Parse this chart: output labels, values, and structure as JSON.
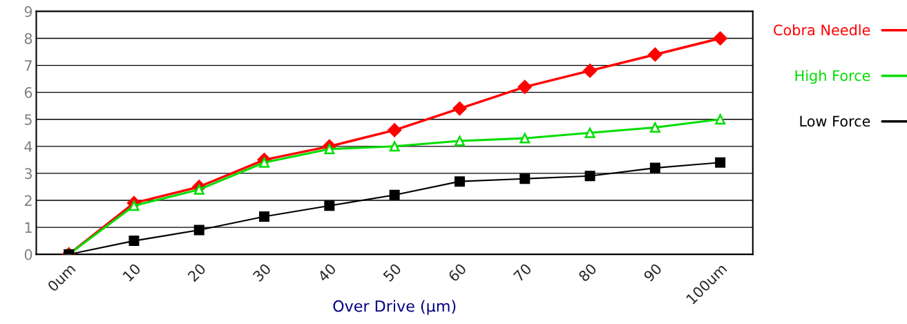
{
  "chart_data": {
    "type": "line",
    "xlabel": "Over Drive (μm)",
    "categories": [
      "0um",
      "10",
      "20",
      "30",
      "40",
      "50",
      "60",
      "70",
      "80",
      "90",
      "100um"
    ],
    "series": [
      {
        "name": "Cobra Needle",
        "color": "#ff0000",
        "marker": "diamond",
        "values": [
          0,
          1.9,
          2.5,
          3.5,
          4.0,
          4.6,
          5.4,
          6.2,
          6.8,
          7.4,
          8.0
        ]
      },
      {
        "name": "High Force",
        "color": "#00dd00",
        "marker": "triangle",
        "values": [
          0,
          1.8,
          2.4,
          3.4,
          3.9,
          4.0,
          4.2,
          4.3,
          4.5,
          4.7,
          5.0
        ]
      },
      {
        "name": "Low Force",
        "color": "#000000",
        "marker": "square",
        "values": [
          0,
          0.5,
          0.9,
          1.4,
          1.8,
          2.2,
          2.7,
          2.8,
          2.9,
          3.2,
          3.4
        ]
      }
    ],
    "ylim": [
      0,
      9
    ],
    "yticks": [
      0,
      1,
      2,
      3,
      4,
      5,
      6,
      7,
      8,
      9
    ],
    "grid": "y",
    "legend": "right",
    "line_style": "solid"
  }
}
